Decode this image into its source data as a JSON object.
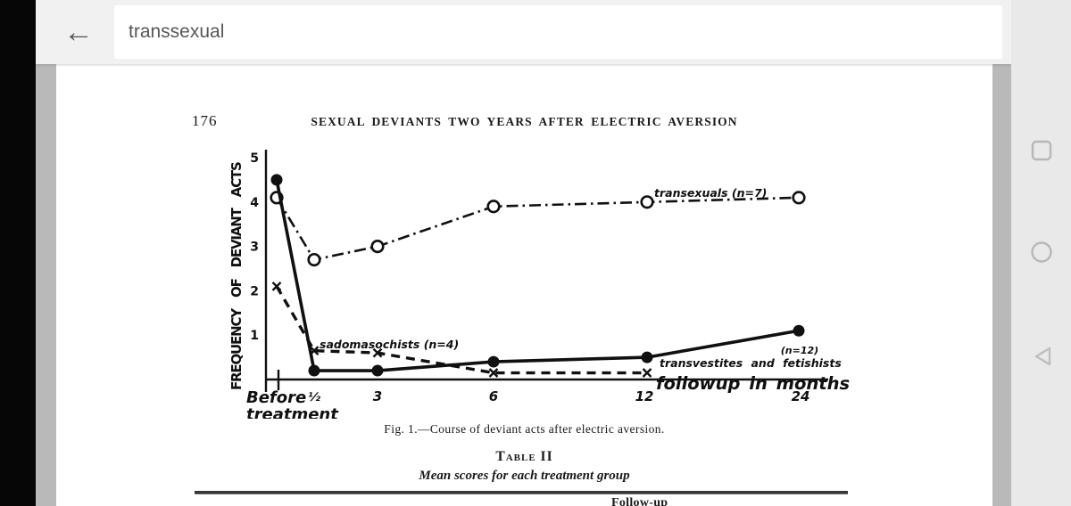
{
  "app": {
    "search_value": "transsexual",
    "back_icon_glyph": "←"
  },
  "android_nav": {
    "recents_icon": "square-outline",
    "home_icon": "circle-outline",
    "back_icon": "triangle-left-outline"
  },
  "page": {
    "page_number": "176",
    "running_head": "SEXUAL DEVIANTS TWO YEARS AFTER ELECTRIC AVERSION",
    "figure_caption": "Fig. 1.—Course of deviant acts after electric aversion.",
    "table_label": "Table II",
    "table_subtitle": "Mean scores for each treatment group",
    "table_partial_header": "Follow-up"
  },
  "chart_data": {
    "type": "line",
    "title": "Course of deviant acts after electric aversion",
    "ylabel": "FREQUENCY OF DEVIANT ACTS",
    "xlabel": "followup in months",
    "ylim": [
      0,
      5
    ],
    "y_ticks": [
      1,
      2,
      3,
      4,
      5
    ],
    "categories": [
      "Before treatment",
      "½",
      "3",
      "6",
      "12",
      "24"
    ],
    "x_ticks": [
      "½",
      "3",
      "6",
      "12",
      "24"
    ],
    "origin_label_line1": "Before",
    "origin_label_line2": "treatment",
    "grid": false,
    "legend_position": "inline-annotations",
    "series": [
      {
        "name": "transexuals (n=7)",
        "marker": "open-circle",
        "line_style": "dash-dot",
        "values": [
          4.1,
          2.7,
          3.0,
          3.9,
          4.0,
          4.1
        ]
      },
      {
        "name": "sadomasochists (n=4)",
        "marker": "x",
        "line_style": "dashed",
        "values": [
          2.1,
          0.65,
          0.6,
          0.15,
          0.15,
          null
        ]
      },
      {
        "name": "transvestites and fetishists (n=12)",
        "marker": "filled-circle",
        "line_style": "solid",
        "values": [
          4.5,
          0.2,
          0.2,
          0.4,
          0.5,
          1.1
        ]
      }
    ],
    "annotations": {
      "transexuals": "transexuals (n=7)",
      "sadomasochists": "sadomasochists (n=4)",
      "transvestites_n": "(n=12)",
      "transvestites": "transvestites and fetishists",
      "followup": "followup in months"
    }
  }
}
